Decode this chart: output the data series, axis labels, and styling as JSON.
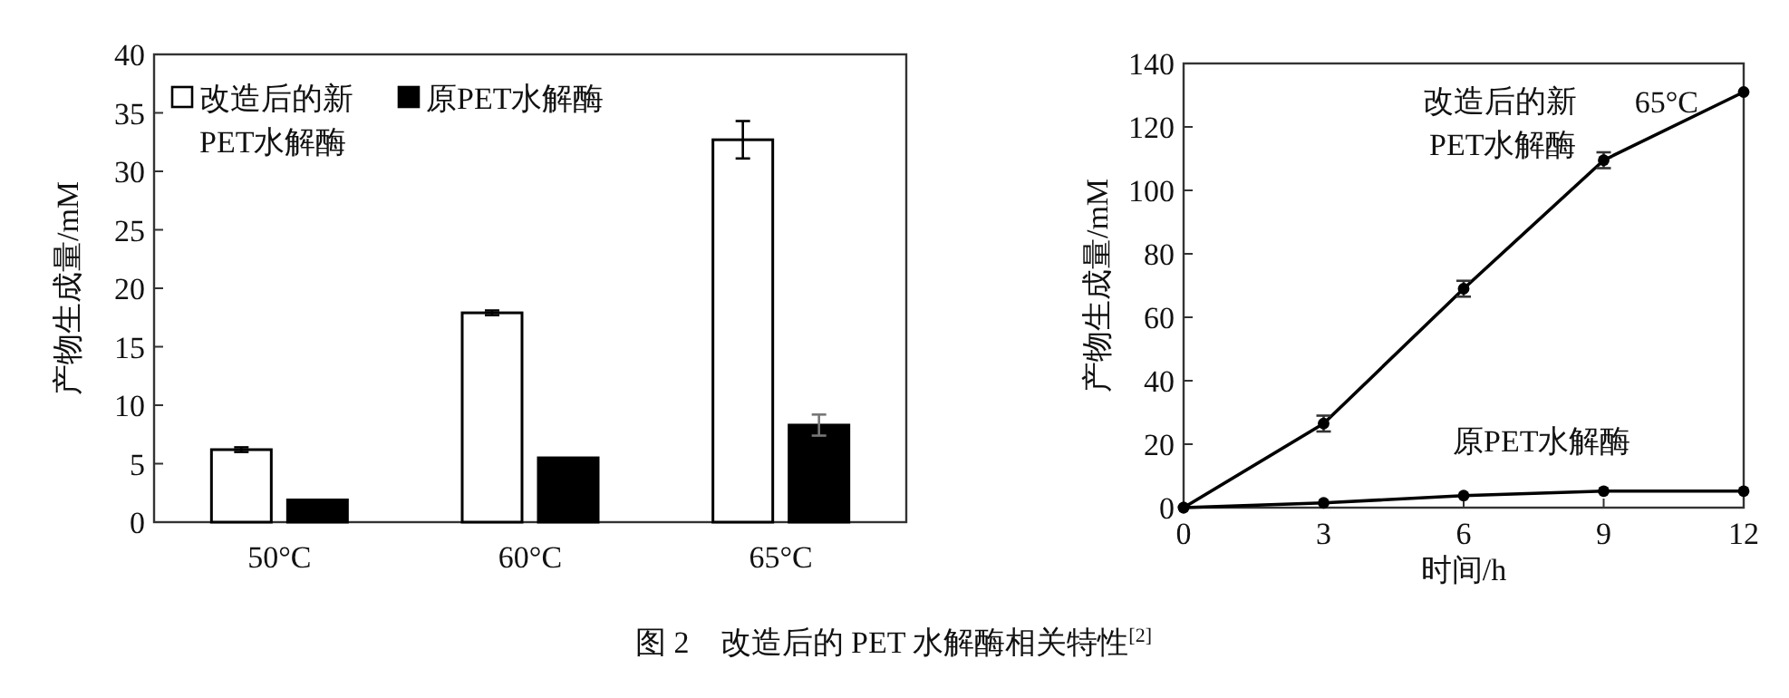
{
  "chart_data": [
    {
      "type": "bar",
      "ylabel": "产物生成量/mM",
      "categories": [
        "50°C",
        "60°C",
        "65°C"
      ],
      "ylim": [
        0,
        40
      ],
      "yticks": [
        0,
        5,
        10,
        15,
        20,
        25,
        30,
        35,
        40
      ],
      "legend": "top left",
      "grid": false,
      "series": [
        {
          "name": "改造后的新PET水解酶",
          "color": "#ffffff",
          "values": [
            6.2,
            17.9,
            32.7
          ],
          "errors": [
            0.2,
            0.2,
            1.6
          ]
        },
        {
          "name": "原PET水解酶",
          "color": "#000000",
          "values": [
            1.9,
            5.5,
            8.3
          ],
          "errors": [
            null,
            null,
            0.9
          ]
        }
      ],
      "annotations": [
        "图 2　改造后的 PET 水解酶相关特性$^{[2]}$"
      ]
    },
    {
      "type": "line",
      "ylabel": "产物生成量/mM",
      "xlabel": "时间/h",
      "xlim": [
        0,
        12
      ],
      "xticks": [
        0,
        3,
        6,
        9,
        12
      ],
      "ylim": [
        0,
        140
      ],
      "yticks": [
        0,
        20,
        40,
        60,
        80,
        100,
        120,
        140
      ],
      "marker": "circle",
      "line_style": "solid",
      "grid": false,
      "series": [
        {
          "name": "改造后的新PET水解酶",
          "color": "#000000",
          "x": [
            0,
            3,
            6,
            9,
            12
          ],
          "values": [
            0,
            26.5,
            69,
            109.5,
            131
          ],
          "errors": [
            null,
            2.5,
            2.5,
            2.5,
            null
          ]
        },
        {
          "name": "原PET水解酶",
          "color": "#000000",
          "x": [
            0,
            3,
            6,
            9,
            12
          ],
          "values": [
            0,
            1.5,
            3.8,
            5.2,
            5.2
          ]
        }
      ],
      "annotations": [
        "65°C"
      ]
    }
  ]
}
